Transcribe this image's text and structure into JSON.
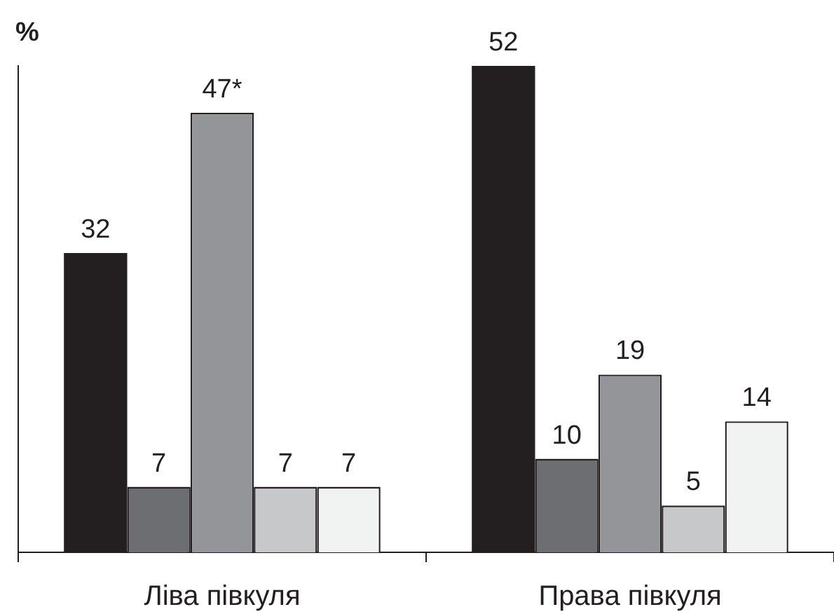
{
  "chart_data": {
    "type": "bar",
    "ylabel": "%",
    "categories": [
      "Ліва півкуля",
      "Права півкуля"
    ],
    "series": [
      {
        "color": "#231f20",
        "values": [
          32,
          52
        ],
        "value_labels": [
          "32",
          "52"
        ]
      },
      {
        "color": "#6d6e71",
        "values": [
          7,
          10
        ],
        "value_labels": [
          "7",
          "10"
        ]
      },
      {
        "color": "#939598",
        "values": [
          47,
          19
        ],
        "value_labels": [
          "47*",
          "19"
        ]
      },
      {
        "color": "#c7c8ca",
        "values": [
          7,
          5
        ],
        "value_labels": [
          "7",
          "5"
        ]
      },
      {
        "color": "#f1f2f2",
        "values": [
          7,
          14
        ],
        "value_labels": [
          "7",
          "14"
        ]
      }
    ],
    "ylim": [
      0,
      52
    ],
    "tick_labels": "x"
  }
}
